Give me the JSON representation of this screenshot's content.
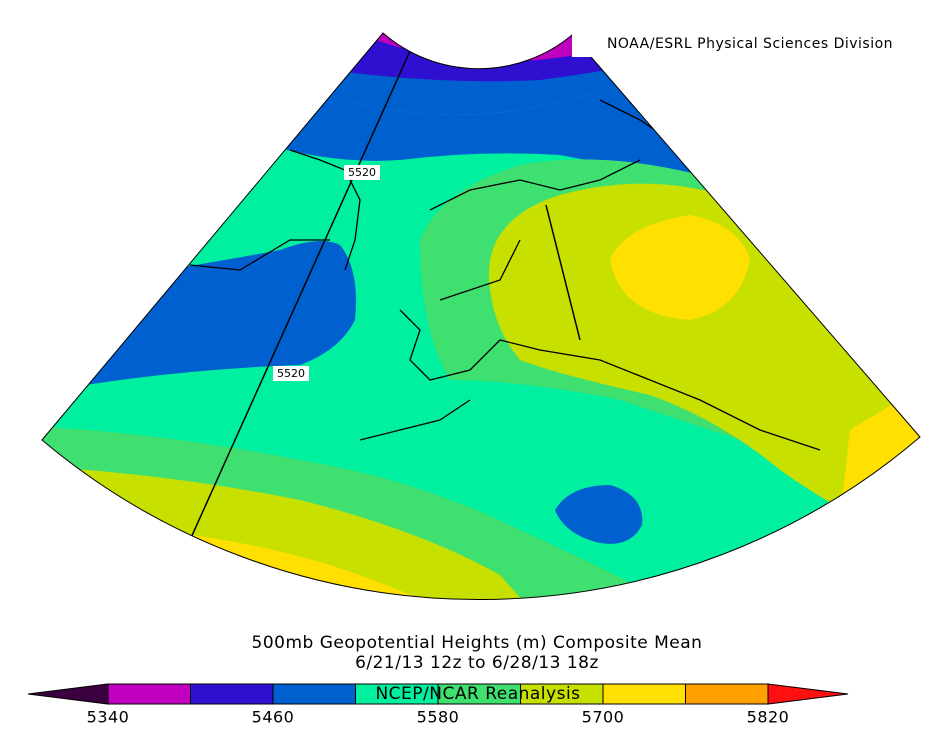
{
  "credit": "NOAA/ESRL Physical Sciences Division",
  "contour_labels": [
    "5520",
    "5520"
  ],
  "title": [
    "500mb Geopotential Heights (m)   Composite Mean",
    "6/21/13 12z  to 6/28/13 18z"
  ],
  "source": "NCEP/NCAR Reanalysis",
  "colorbar": {
    "colors": [
      "#3a0040",
      "#c000c0",
      "#3010d0",
      "#0060d0",
      "#00f0a0",
      "#40e070",
      "#c8e000",
      "#ffe000",
      "#ffa000",
      "#ff1010"
    ],
    "ticks": [
      "5340",
      "5460",
      "5580",
      "5700",
      "5820"
    ]
  }
}
